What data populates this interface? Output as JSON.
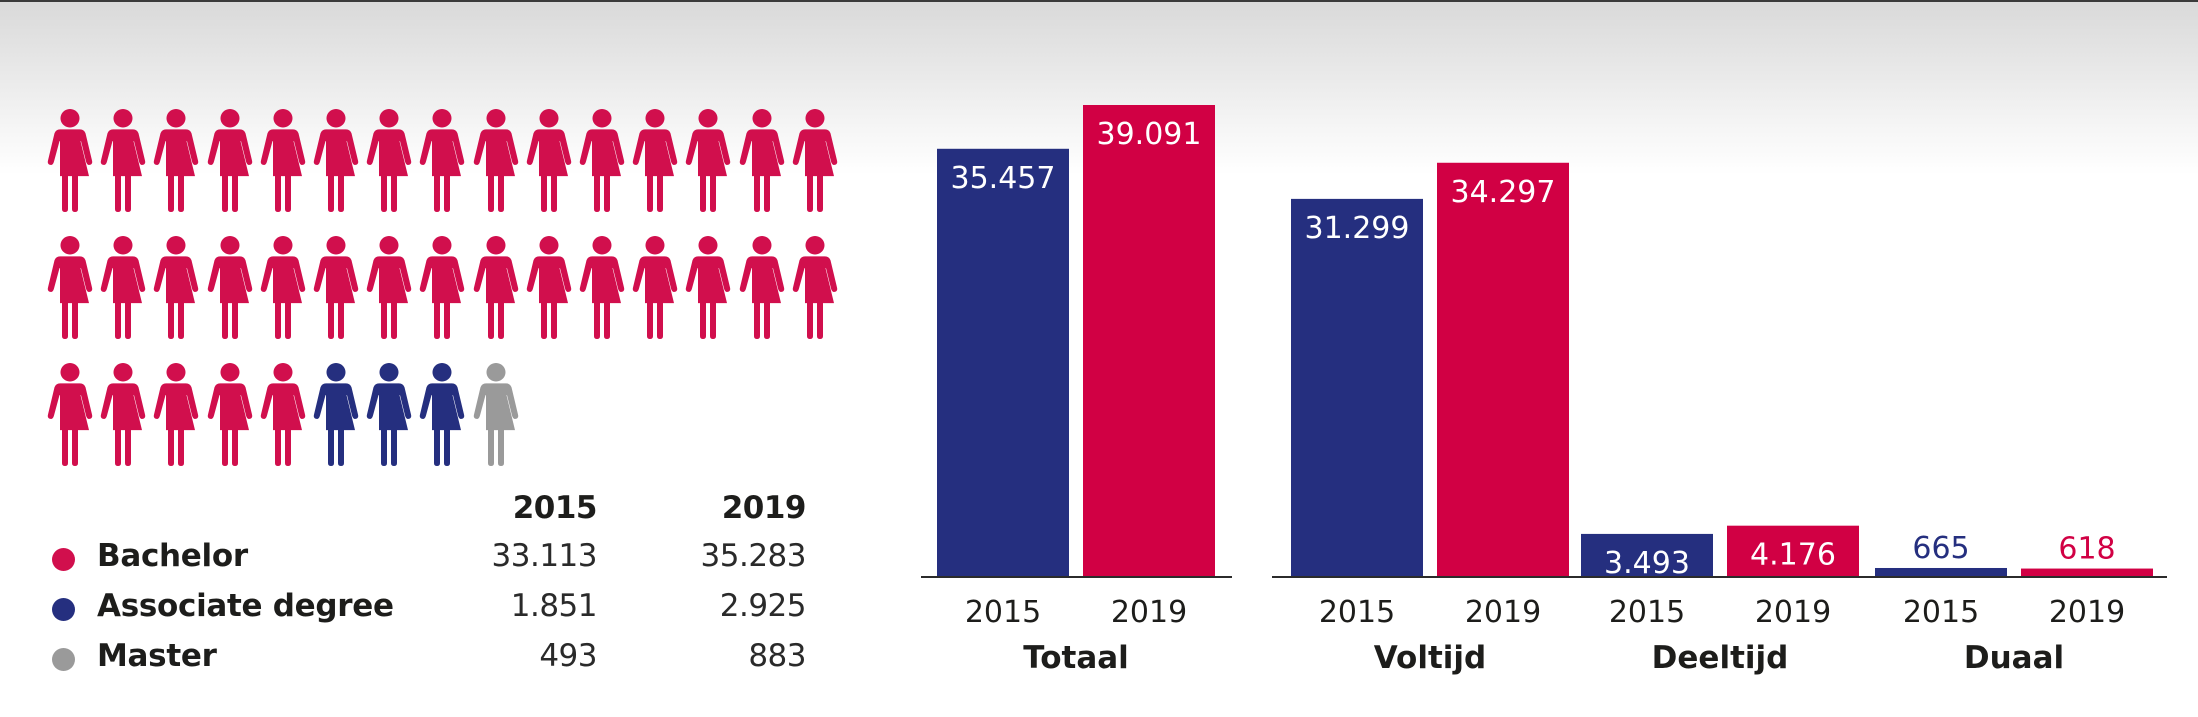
{
  "colors": {
    "bachelor": "#d10f4d",
    "associate": "#252f7f",
    "master": "#9a9a9a",
    "bar_2015": "#252f7f",
    "bar_2019": "#d10044",
    "axis": "#2b2b2b"
  },
  "pictogram": {
    "rows": [
      [
        "bachelor",
        "bachelor",
        "bachelor",
        "bachelor",
        "bachelor",
        "bachelor",
        "bachelor",
        "bachelor",
        "bachelor",
        "bachelor",
        "bachelor",
        "bachelor",
        "bachelor",
        "bachelor",
        "bachelor"
      ],
      [
        "bachelor",
        "bachelor",
        "bachelor",
        "bachelor",
        "bachelor",
        "bachelor",
        "bachelor",
        "bachelor",
        "bachelor",
        "bachelor",
        "bachelor",
        "bachelor",
        "bachelor",
        "bachelor",
        "bachelor"
      ],
      [
        "bachelor",
        "bachelor",
        "bachelor",
        "bachelor",
        "bachelor",
        "associate",
        "associate",
        "associate",
        "master"
      ]
    ]
  },
  "legend": {
    "headers": [
      "2015",
      "2019"
    ],
    "rows": [
      {
        "key": "bachelor",
        "label": "Bachelor",
        "v2015": "33.113",
        "v2019": "35.283"
      },
      {
        "key": "associate",
        "label": "Associate degree",
        "v2015": "1.851",
        "v2019": "2.925"
      },
      {
        "key": "master",
        "label": "Master",
        "v2015": "493",
        "v2019": "883"
      }
    ]
  },
  "chart_data": {
    "type": "bar",
    "title": "",
    "xlabel": "",
    "ylabel": "",
    "ylim": [
      0,
      39091
    ],
    "grid": false,
    "groups": [
      {
        "name": "Totaal",
        "axis_segment": 1
      },
      {
        "name": "Voltijd",
        "axis_segment": 2
      },
      {
        "name": "Deeltijd",
        "axis_segment": 2
      },
      {
        "name": "Duaal",
        "axis_segment": 2
      }
    ],
    "categories": [
      "Totaal",
      "Voltijd",
      "Deeltijd",
      "Duaal"
    ],
    "series": [
      {
        "name": "2015",
        "values": [
          35457,
          31299,
          3493,
          665
        ],
        "labels": [
          "35.457",
          "31.299",
          "3.493",
          "665"
        ]
      },
      {
        "name": "2019",
        "values": [
          39091,
          34297,
          4176,
          618
        ],
        "labels": [
          "39.091",
          "34.297",
          "4.176",
          "618"
        ]
      }
    ]
  }
}
